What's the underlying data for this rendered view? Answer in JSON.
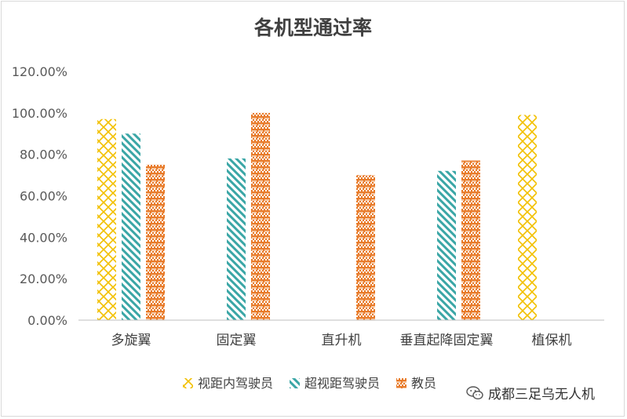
{
  "chart_data": {
    "type": "bar",
    "title": "各机型通过率",
    "categories": [
      "多旋翼",
      "固定翼",
      "直升机",
      "垂直起降固定翼",
      "植保机"
    ],
    "series": [
      {
        "name": "视距内驾驶员",
        "color": "#f2c000",
        "pattern": "lattice",
        "values": [
          0.97,
          null,
          null,
          null,
          0.99
        ]
      },
      {
        "name": "超视距驾驶员",
        "color": "#3aa6a6",
        "pattern": "diagonal",
        "values": [
          0.9,
          0.78,
          null,
          0.72,
          null
        ]
      },
      {
        "name": "教员",
        "color": "#e87b2a",
        "pattern": "checker",
        "values": [
          0.75,
          1.0,
          0.7,
          0.77,
          null
        ]
      }
    ],
    "yticks": [
      "0.00%",
      "20.00%",
      "40.00%",
      "60.00%",
      "80.00%",
      "100.00%",
      "120.00%"
    ],
    "ylim": [
      0,
      1.2
    ],
    "grid": false,
    "legend_position": "bottom"
  },
  "watermark": {
    "icon": "wechat-icon",
    "text": "成都三足乌无人机"
  }
}
